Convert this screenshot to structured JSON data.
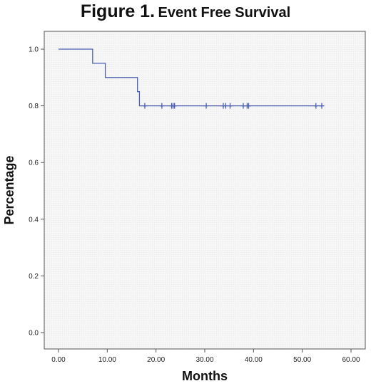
{
  "title": {
    "figure_label": "Figure 1.",
    "text": "Event Free Survival"
  },
  "chart_data": {
    "type": "line",
    "title": "Figure 1. Event Free Survival",
    "xlabel": "Months",
    "ylabel": "Percentage",
    "xlim": [
      0,
      60
    ],
    "ylim": [
      0,
      1
    ],
    "x_ticks": [
      "0.00",
      "10.00",
      "20.00",
      "30.00",
      "40.00",
      "50.00",
      "60.00"
    ],
    "y_ticks": [
      "0.0",
      "0.2",
      "0.4",
      "0.6",
      "0.8",
      "1.0"
    ],
    "grid": false,
    "series": [
      {
        "style": "step",
        "color": "#4a5db0",
        "x": [
          0,
          7,
          9.6,
          16.2,
          16.6,
          54.1
        ],
        "y": [
          1.0,
          0.95,
          0.9,
          0.85,
          0.8,
          0.8
        ]
      }
    ],
    "censored": {
      "x": [
        17.7,
        21.2,
        23.2,
        23.5,
        23.8,
        30.3,
        33.8,
        34.3,
        35.2,
        37.9,
        38.7,
        39.0,
        52.8,
        54.0
      ],
      "y": 0.8
    }
  }
}
